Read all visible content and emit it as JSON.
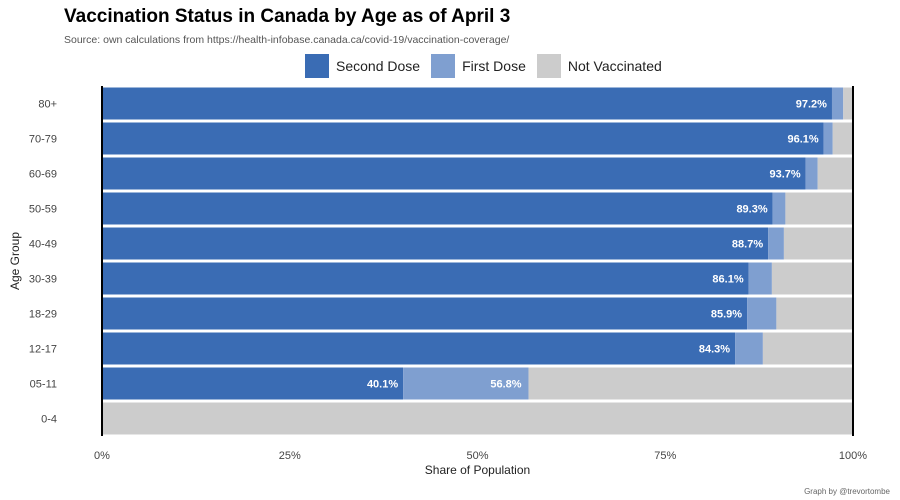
{
  "title": "Vaccination Status in Canada by Age as of April 3",
  "subtitle": "Source: own calculations from https://health-infobase.canada.ca/covid-19/vaccination-coverage/",
  "credit": "Graph by @trevortombe",
  "colors": {
    "second_dose": "#3a6cb4",
    "first_dose": "#7f9fd0",
    "not_vaccinated": "#cccccc"
  },
  "chart_data": {
    "type": "bar",
    "orientation": "horizontal",
    "stacked": true,
    "xlabel": "Share of Population",
    "ylabel": "Age Group",
    "xlim": [
      0,
      100
    ],
    "x_ticks": [
      "0%",
      "25%",
      "50%",
      "75%",
      "100%"
    ],
    "categories": [
      "80+",
      "70-79",
      "60-69",
      "50-59",
      "40-49",
      "30-39",
      "18-29",
      "12-17",
      "05-11",
      "0-4"
    ],
    "series": [
      {
        "name": "Second Dose",
        "values": [
          97.2,
          96.1,
          93.7,
          89.3,
          88.7,
          86.1,
          85.9,
          84.3,
          40.1,
          0
        ]
      },
      {
        "name": "First Dose",
        "values": [
          1.5,
          1.2,
          1.6,
          1.7,
          2.1,
          3.1,
          3.9,
          3.7,
          16.7,
          0
        ]
      },
      {
        "name": "Not Vaccinated",
        "values": [
          1.3,
          2.7,
          4.7,
          9.0,
          9.2,
          10.8,
          10.2,
          12.0,
          43.2,
          100
        ]
      }
    ],
    "data_labels": [
      {
        "category": "80+",
        "labels": [
          "97.2%",
          ""
        ]
      },
      {
        "category": "70-79",
        "labels": [
          "96.1%",
          ""
        ]
      },
      {
        "category": "60-69",
        "labels": [
          "93.7%",
          ""
        ]
      },
      {
        "category": "50-59",
        "labels": [
          "89.3%",
          ""
        ]
      },
      {
        "category": "40-49",
        "labels": [
          "88.7%",
          ""
        ]
      },
      {
        "category": "30-39",
        "labels": [
          "86.1%",
          ""
        ]
      },
      {
        "category": "18-29",
        "labels": [
          "85.9%",
          ""
        ]
      },
      {
        "category": "12-17",
        "labels": [
          "84.3%",
          ""
        ]
      },
      {
        "category": "05-11",
        "labels": [
          "40.1%",
          "56.8%"
        ]
      },
      {
        "category": "0-4",
        "labels": [
          "",
          ""
        ]
      }
    ],
    "legend_position": "top",
    "grid": false
  }
}
